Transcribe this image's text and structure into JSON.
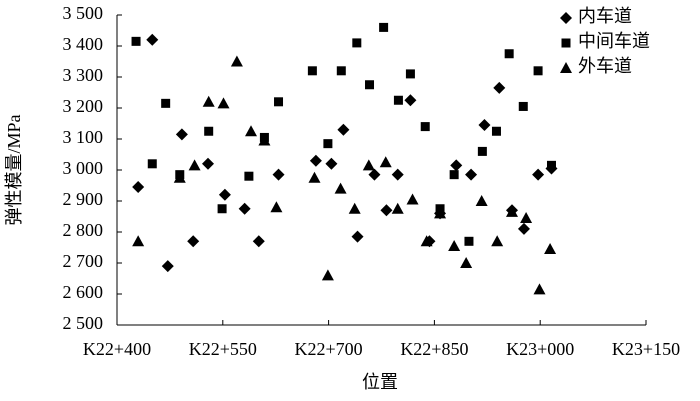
{
  "chart_data": {
    "type": "scatter",
    "xlabel": "位置",
    "ylabel": "弹性模量/MPa",
    "xlim": [
      22400,
      23150
    ],
    "xticks": [
      {
        "value": 22400,
        "label": "K22+400"
      },
      {
        "value": 22550,
        "label": "K22+550"
      },
      {
        "value": 22700,
        "label": "K22+700"
      },
      {
        "value": 22850,
        "label": "K22+850"
      },
      {
        "value": 23000,
        "label": "K23+000"
      },
      {
        "value": 23150,
        "label": "K23+150"
      }
    ],
    "ylim": [
      2500,
      3500
    ],
    "yticks": [
      {
        "value": 2500,
        "label": "2 500"
      },
      {
        "value": 2600,
        "label": "2 600"
      },
      {
        "value": 2700,
        "label": "2 700"
      },
      {
        "value": 2800,
        "label": "2 800"
      },
      {
        "value": 2900,
        "label": "2 900"
      },
      {
        "value": 3000,
        "label": "3 000"
      },
      {
        "value": 3100,
        "label": "3 100"
      },
      {
        "value": 3200,
        "label": "3 200"
      },
      {
        "value": 3300,
        "label": "3 300"
      },
      {
        "value": 3400,
        "label": "3 400"
      },
      {
        "value": 3500,
        "label": "3 500"
      }
    ],
    "legend": "upper right",
    "series": [
      {
        "name": "内车道",
        "color": "#000000",
        "marker": "diamond",
        "x": [
          22430,
          22450,
          22472,
          22492,
          22508,
          22529,
          22553,
          22581,
          22601,
          22629,
          22682,
          22704,
          22721,
          22741,
          22765,
          22782,
          22798,
          22816,
          22843,
          22858,
          22881,
          22902,
          22921,
          22942,
          22960,
          22977,
          22997,
          23016
        ],
        "values": [
          2945,
          3420,
          2690,
          3115,
          2770,
          3020,
          2920,
          2875,
          2770,
          2985,
          3030,
          3020,
          3130,
          2785,
          2985,
          2870,
          2985,
          3225,
          2770,
          2860,
          3015,
          2985,
          3145,
          3265,
          2870,
          2810,
          2985,
          3005
        ]
      },
      {
        "name": "中间车道",
        "color": "#000000",
        "marker": "square",
        "x": [
          22427,
          22450,
          22469,
          22489,
          22530,
          22549,
          22587,
          22609,
          22629,
          22677,
          22699,
          22718,
          22740,
          22758,
          22778,
          22799,
          22816,
          22837,
          22858,
          22878,
          22899,
          22918,
          22938,
          22956,
          22976,
          22997,
          23016
        ],
        "values": [
          3415,
          3020,
          3215,
          2985,
          3125,
          2875,
          2980,
          3105,
          3220,
          3320,
          3085,
          3320,
          3410,
          3275,
          3460,
          3225,
          3310,
          3140,
          2875,
          2985,
          2770,
          3060,
          3125,
          3375,
          3205,
          3320,
          3015
        ]
      },
      {
        "name": "外车道",
        "color": "#000000",
        "marker": "triangle",
        "x": [
          22430,
          22489,
          22510,
          22530,
          22551,
          22570,
          22590,
          22609,
          22626,
          22680,
          22699,
          22717,
          22737,
          22757,
          22781,
          22798,
          22819,
          22839,
          22858,
          22878,
          22895,
          22917,
          22939,
          22960,
          22980,
          22999,
          23014
        ],
        "values": [
          2770,
          2975,
          3015,
          3220,
          3215,
          3350,
          3125,
          3095,
          2880,
          2975,
          2660,
          2940,
          2875,
          3015,
          3025,
          2875,
          2905,
          2770,
          2860,
          2755,
          2700,
          2900,
          2770,
          2865,
          2845,
          2615,
          2745
        ]
      }
    ]
  }
}
